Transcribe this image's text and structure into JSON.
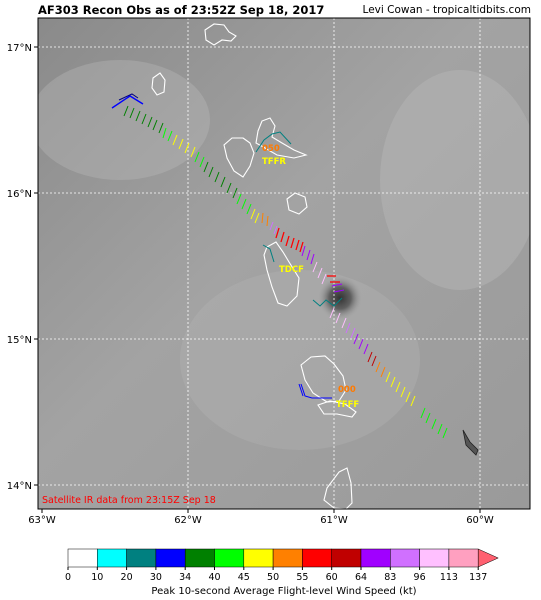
{
  "header": {
    "title": "AF303 Recon Obs as of 23:52Z Sep 18, 2017",
    "credit": "Levi Cowan - tropicaltidbits.com"
  },
  "map": {
    "lat_labels": [
      "17°N",
      "16°N",
      "15°N",
      "14°N"
    ],
    "lon_labels": [
      "63°W",
      "62°W",
      "61°W",
      "60°W"
    ],
    "annotations": [
      {
        "text": "050",
        "color": "#ff7a00"
      },
      {
        "text": "TFFR",
        "color": "#ffff00"
      },
      {
        "text": "TDCF",
        "color": "#ffff00"
      },
      {
        "text": "000",
        "color": "#ff7a00"
      },
      {
        "text": "TFFF",
        "color": "#ffff00"
      }
    ],
    "satellite_note": "Satellite IR data from 23:15Z Sep 18"
  },
  "colorbar": {
    "title": "Peak 10-second Average Flight-level Wind Speed (kt)",
    "ticks": [
      "0",
      "10",
      "20",
      "30",
      "34",
      "40",
      "45",
      "50",
      "55",
      "60",
      "64",
      "83",
      "96",
      "113",
      "137"
    ],
    "colors": [
      "#ffffff",
      "#00ffff",
      "#008080",
      "#0000ff",
      "#008000",
      "#00ff00",
      "#ffff00",
      "#ff8000",
      "#ff0000",
      "#c00000",
      "#a000ff",
      "#d070ff",
      "#ffc0ff",
      "#ffa0c0"
    ]
  }
}
